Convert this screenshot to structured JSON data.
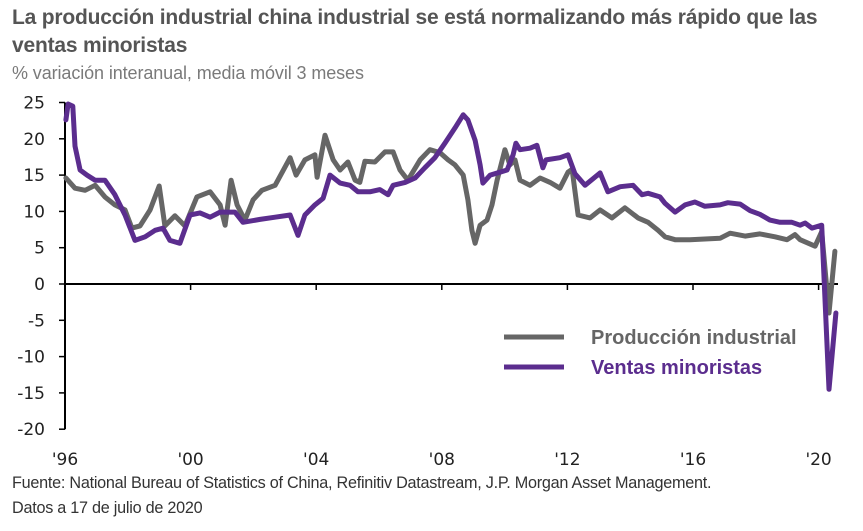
{
  "title": "La producción industrial china industrial se está normalizando más rápido que las ventas minoristas",
  "subtitle": "% variación interanual, media móvil 3 meses",
  "footer": {
    "source": "Fuente: National Bureau of Statistics of China, Refinitiv Datastream, J.P. Morgan Asset Management.",
    "date": "Datos a 17 de julio de 2020"
  },
  "colors": {
    "industrial": "#666666",
    "retail": "#5b2d8e",
    "axis": "#000000"
  },
  "chart_data": {
    "type": "line",
    "title": "La producción industrial china industrial se está normalizando más rápido que las ventas minoristas",
    "subtitle": "% variación interanual, media móvil 3 meses",
    "xlabel": "",
    "ylabel": "",
    "xlim": [
      1996,
      2020.8
    ],
    "ylim": [
      -20,
      25
    ],
    "x_ticks": [
      1996,
      2000,
      2004,
      2008,
      2012,
      2016,
      2020
    ],
    "x_tick_labels": [
      "'96",
      "'00",
      "'04",
      "'08",
      "'12",
      "'16",
      "'20"
    ],
    "y_ticks": [
      -20,
      -15,
      -10,
      -5,
      0,
      5,
      10,
      15,
      20,
      25
    ],
    "y_tick_labels": [
      "-20",
      "-15",
      "-10",
      "-5",
      "0",
      "5",
      "10",
      "15",
      "20",
      "25"
    ],
    "grid": false,
    "legend_position": "bottom-right",
    "series": [
      {
        "name": "Producción industrial",
        "color": "#666666",
        "points": [
          [
            1996.03,
            14.6
          ],
          [
            1996.32,
            13.2
          ],
          [
            1996.64,
            12.9
          ],
          [
            1996.96,
            13.6
          ],
          [
            1997.27,
            12.0
          ],
          [
            1997.59,
            10.9
          ],
          [
            1997.91,
            10.2
          ],
          [
            1998.13,
            7.7
          ],
          [
            1998.39,
            8.0
          ],
          [
            1998.71,
            10.2
          ],
          [
            1999.0,
            13.5
          ],
          [
            1999.18,
            8.0
          ],
          [
            1999.5,
            9.4
          ],
          [
            1999.82,
            8.0
          ],
          [
            2000.2,
            12.0
          ],
          [
            2000.62,
            12.7
          ],
          [
            2000.94,
            10.9
          ],
          [
            2001.1,
            8.1
          ],
          [
            2001.29,
            14.3
          ],
          [
            2001.48,
            10.9
          ],
          [
            2001.73,
            8.8
          ],
          [
            2001.99,
            11.6
          ],
          [
            2002.27,
            12.9
          ],
          [
            2002.69,
            13.6
          ],
          [
            2003.17,
            17.4
          ],
          [
            2003.36,
            15.0
          ],
          [
            2003.64,
            17.1
          ],
          [
            2003.96,
            17.8
          ],
          [
            2004.03,
            14.7
          ],
          [
            2004.28,
            20.5
          ],
          [
            2004.54,
            17.1
          ],
          [
            2004.76,
            15.7
          ],
          [
            2005.01,
            16.8
          ],
          [
            2005.24,
            14.3
          ],
          [
            2005.39,
            14.0
          ],
          [
            2005.55,
            16.9
          ],
          [
            2005.87,
            16.8
          ],
          [
            2006.19,
            18.2
          ],
          [
            2006.45,
            18.2
          ],
          [
            2006.67,
            15.7
          ],
          [
            2006.92,
            14.3
          ],
          [
            2007.31,
            17.1
          ],
          [
            2007.62,
            18.5
          ],
          [
            2007.94,
            18.1
          ],
          [
            2008.2,
            17.1
          ],
          [
            2008.42,
            16.4
          ],
          [
            2008.68,
            15.0
          ],
          [
            2008.83,
            11.6
          ],
          [
            2008.96,
            7.4
          ],
          [
            2009.06,
            5.6
          ],
          [
            2009.22,
            8.1
          ],
          [
            2009.44,
            8.8
          ],
          [
            2009.6,
            10.9
          ],
          [
            2009.76,
            14.3
          ],
          [
            2010.01,
            18.5
          ],
          [
            2010.17,
            16.4
          ],
          [
            2010.33,
            17.1
          ],
          [
            2010.49,
            14.3
          ],
          [
            2010.81,
            13.6
          ],
          [
            2011.13,
            14.6
          ],
          [
            2011.45,
            14.0
          ],
          [
            2011.76,
            13.2
          ],
          [
            2012.02,
            15.4
          ],
          [
            2012.15,
            15.8
          ],
          [
            2012.34,
            9.5
          ],
          [
            2012.72,
            9.1
          ],
          [
            2013.04,
            10.2
          ],
          [
            2013.42,
            9.1
          ],
          [
            2013.83,
            10.5
          ],
          [
            2014.25,
            9.1
          ],
          [
            2014.57,
            8.5
          ],
          [
            2014.89,
            7.4
          ],
          [
            2015.11,
            6.5
          ],
          [
            2015.43,
            6.1
          ],
          [
            2015.9,
            6.1
          ],
          [
            2016.38,
            6.2
          ],
          [
            2016.86,
            6.3
          ],
          [
            2017.18,
            7.0
          ],
          [
            2017.66,
            6.6
          ],
          [
            2018.13,
            6.9
          ],
          [
            2018.61,
            6.5
          ],
          [
            2018.99,
            6.1
          ],
          [
            2019.25,
            6.8
          ],
          [
            2019.41,
            6.1
          ],
          [
            2019.89,
            5.2
          ],
          [
            2020.1,
            7.2
          ],
          [
            2020.33,
            -4.0
          ],
          [
            2020.52,
            4.5
          ]
        ]
      },
      {
        "name": "Ventas minoristas",
        "color": "#5b2d8e",
        "points": [
          [
            1996.03,
            22.6
          ],
          [
            1996.1,
            24.8
          ],
          [
            1996.25,
            24.5
          ],
          [
            1996.32,
            19.0
          ],
          [
            1996.48,
            15.7
          ],
          [
            1996.7,
            15.0
          ],
          [
            1996.96,
            14.3
          ],
          [
            1997.27,
            14.3
          ],
          [
            1997.59,
            12.3
          ],
          [
            1997.91,
            9.5
          ],
          [
            1998.23,
            6.0
          ],
          [
            1998.55,
            6.5
          ],
          [
            1998.87,
            7.4
          ],
          [
            1999.12,
            7.7
          ],
          [
            1999.34,
            6.0
          ],
          [
            1999.66,
            5.6
          ],
          [
            1999.98,
            9.5
          ],
          [
            2000.3,
            9.8
          ],
          [
            2000.62,
            9.2
          ],
          [
            2000.94,
            9.9
          ],
          [
            2001.41,
            9.9
          ],
          [
            2001.67,
            8.5
          ],
          [
            2002.21,
            8.9
          ],
          [
            2002.69,
            9.2
          ],
          [
            2003.17,
            9.5
          ],
          [
            2003.42,
            6.7
          ],
          [
            2003.64,
            9.5
          ],
          [
            2003.96,
            10.9
          ],
          [
            2004.22,
            11.8
          ],
          [
            2004.44,
            15.0
          ],
          [
            2004.76,
            13.9
          ],
          [
            2005.08,
            13.6
          ],
          [
            2005.33,
            12.7
          ],
          [
            2005.71,
            12.7
          ],
          [
            2006.03,
            13.0
          ],
          [
            2006.29,
            12.3
          ],
          [
            2006.45,
            13.6
          ],
          [
            2006.83,
            14.0
          ],
          [
            2007.15,
            14.6
          ],
          [
            2007.46,
            16.0
          ],
          [
            2007.78,
            17.4
          ],
          [
            2008.1,
            19.4
          ],
          [
            2008.42,
            21.5
          ],
          [
            2008.68,
            23.3
          ],
          [
            2008.83,
            22.6
          ],
          [
            2009.06,
            19.8
          ],
          [
            2009.22,
            16.4
          ],
          [
            2009.31,
            13.9
          ],
          [
            2009.54,
            15.0
          ],
          [
            2009.85,
            15.4
          ],
          [
            2010.08,
            15.7
          ],
          [
            2010.27,
            17.8
          ],
          [
            2010.36,
            19.4
          ],
          [
            2010.49,
            18.5
          ],
          [
            2010.81,
            18.7
          ],
          [
            2011.03,
            19.1
          ],
          [
            2011.22,
            16.0
          ],
          [
            2011.32,
            17.1
          ],
          [
            2011.76,
            17.4
          ],
          [
            2012.02,
            17.8
          ],
          [
            2012.24,
            15.2
          ],
          [
            2012.56,
            13.6
          ],
          [
            2013.04,
            15.3
          ],
          [
            2013.29,
            12.7
          ],
          [
            2013.68,
            13.4
          ],
          [
            2014.09,
            13.6
          ],
          [
            2014.38,
            12.3
          ],
          [
            2014.57,
            12.5
          ],
          [
            2014.95,
            12.0
          ],
          [
            2015.11,
            11.1
          ],
          [
            2015.43,
            9.9
          ],
          [
            2015.75,
            10.9
          ],
          [
            2016.06,
            11.3
          ],
          [
            2016.38,
            10.7
          ],
          [
            2016.86,
            10.9
          ],
          [
            2017.11,
            11.2
          ],
          [
            2017.5,
            11.0
          ],
          [
            2017.82,
            10.1
          ],
          [
            2018.13,
            9.6
          ],
          [
            2018.45,
            8.8
          ],
          [
            2018.77,
            8.5
          ],
          [
            2019.15,
            8.5
          ],
          [
            2019.41,
            8.1
          ],
          [
            2019.57,
            8.4
          ],
          [
            2019.79,
            7.7
          ],
          [
            2020.1,
            8.1
          ],
          [
            2020.33,
            -14.5
          ],
          [
            2020.55,
            -4.0
          ]
        ]
      }
    ]
  }
}
